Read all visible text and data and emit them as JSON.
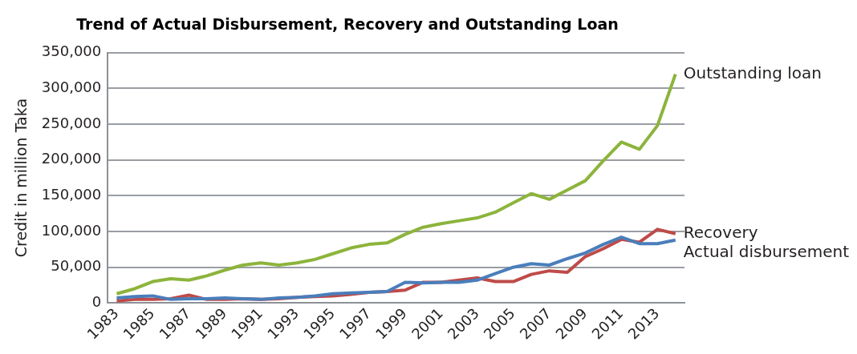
{
  "chart_data": {
    "type": "line",
    "title": "Trend of Actual Disbursement, Recovery and Outstanding Loan",
    "ylabel": "Credit in million Taka",
    "categories": [
      "1983",
      null,
      "1985",
      null,
      "1987",
      null,
      "1989",
      null,
      "1991",
      null,
      "1993",
      null,
      "1995",
      null,
      "1997",
      null,
      "1999",
      null,
      "2001",
      null,
      "2003",
      null,
      "2005",
      null,
      "2007",
      null,
      "2009",
      null,
      "2011",
      null,
      "2013",
      null
    ],
    "series": [
      {
        "name": "Actual disbursement",
        "color": "#4a7ebb",
        "values": [
          7000,
          9000,
          10000,
          5000,
          6000,
          6000,
          7000,
          6000,
          5000,
          7000,
          8000,
          10000,
          13000,
          14000,
          15000,
          16000,
          29000,
          28000,
          29000,
          29000,
          32000,
          41000,
          50000,
          55000,
          53000,
          62000,
          70000,
          82000,
          92000,
          83000,
          83000,
          88000
        ]
      },
      {
        "name": "Recovery",
        "color": "#be4b48",
        "values": [
          3000,
          5000,
          5000,
          6000,
          11000,
          5000,
          5000,
          6000,
          5000,
          6000,
          8000,
          9000,
          10000,
          12000,
          15000,
          16000,
          18000,
          29000,
          29000,
          32000,
          35000,
          30000,
          30000,
          40000,
          45000,
          43000,
          65000,
          76000,
          89000,
          85000,
          103000,
          97000
        ]
      },
      {
        "name": "Outstanding loan",
        "color": "#8cb43c",
        "values": [
          13000,
          20000,
          30000,
          34000,
          32000,
          38000,
          46000,
          53000,
          56000,
          53000,
          56000,
          61000,
          69000,
          77000,
          82000,
          84000,
          96000,
          106000,
          111000,
          115000,
          119000,
          127000,
          140000,
          153000,
          145000,
          158000,
          171000,
          199000,
          225000,
          215000,
          248000,
          320000
        ]
      }
    ],
    "ylim": [
      0,
      350000
    ],
    "yticks": [
      0,
      {
        "value": 50000,
        "label": "50,000"
      },
      {
        "value": 100000,
        "label": "100,000"
      },
      {
        "value": 150000,
        "label": "150,000"
      },
      {
        "value": 200000,
        "label": "200,000"
      },
      {
        "value": 250000,
        "label": "250,000"
      },
      {
        "value": 300000,
        "label": "300,000"
      },
      {
        "value": 350000,
        "label": "350,000"
      }
    ],
    "grid": "y",
    "legend": false,
    "marker": "none",
    "line_style": "solid"
  }
}
